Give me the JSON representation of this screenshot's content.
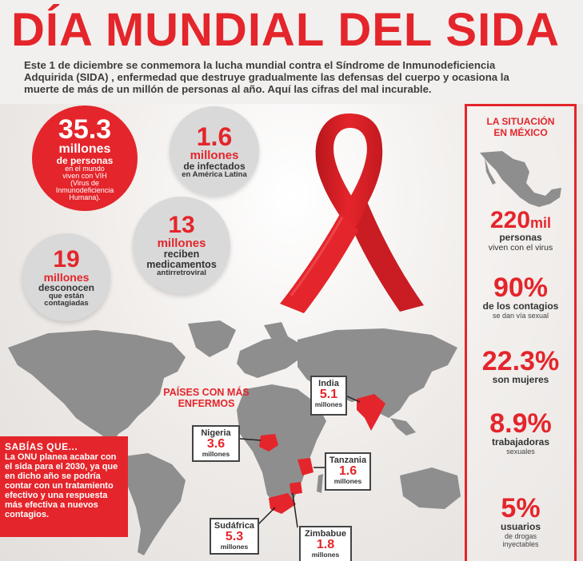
{
  "title": "DÍA MUNDIAL DEL SIDA",
  "intro": "Este 1 de diciembre se conmemora la lucha mundial contra el Síndrome de Inmunodeficiencia Adquirida (SIDA) , enfermedad que destruye gradualmente las defensas del cuerpo y ocasiona la muerte de más de un millón de personas al año. Aquí las cifras del mal incurable.",
  "bubbles": {
    "b1": {
      "num": "35.3",
      "unit": "millones",
      "l1": "de personas",
      "l2": "en el mundo",
      "l3": "viven con VIH",
      "l4": "(Virus de",
      "l5": "Inmunodeficiencia",
      "l6": "Humana)."
    },
    "b2": {
      "num": "1.6",
      "unit": "millones",
      "l1": "de infectados",
      "l2": "en América Latina"
    },
    "b3": {
      "num": "13",
      "unit": "millones",
      "l1": "reciben",
      "l2": "medicamentos",
      "l3": "antirretroviral"
    },
    "b4": {
      "num": "19",
      "unit": "millones",
      "l1": "desconocen",
      "l2": "que están",
      "l3": "contagiadas"
    }
  },
  "ribbon": {
    "icon": "red-ribbon-icon",
    "color": "#d9232a"
  },
  "map_label": "PAÍSES CON MÁS ENFERMOS",
  "countries": {
    "india": {
      "name": "India",
      "value": "5.1",
      "unit": "millones"
    },
    "nigeria": {
      "name": "Nigeria",
      "value": "3.6",
      "unit": "millones"
    },
    "tanzania": {
      "name": "Tanzania",
      "value": "1.6",
      "unit": "millones"
    },
    "sudafrica": {
      "name": "Sudáfrica",
      "value": "5.3",
      "unit": "millones"
    },
    "zimbabue": {
      "name": "Zimbabue",
      "value": "1.8",
      "unit": "millones"
    }
  },
  "sabias": {
    "heading": "SABÍAS QUE...",
    "text": "La ONU planea acabar con el sida para el 2030, ya que en dicho año se podría contar con un tratamiento efectivo y una respuesta más efectiva a nuevos contagios."
  },
  "mexico": {
    "heading_l1": "LA SITUACIÓN",
    "heading_l2": "EN MÉXICO",
    "s1": {
      "big": "220",
      "suffix": "mil",
      "l1": "personas",
      "l2": "viven con el virus"
    },
    "s2": {
      "big": "90%",
      "l1": "de los contagios",
      "l2": "se dan vía sexual"
    },
    "s3": {
      "big": "22.3%",
      "l1": "son mujeres"
    },
    "s4": {
      "big": "8.9%",
      "l1": "trabajadoras",
      "l2": "sexuales"
    },
    "s5": {
      "big": "5%",
      "l1": "usuarios",
      "l2": "de drogas",
      "l3": "inyectables"
    }
  },
  "colors": {
    "accent": "#e4252b",
    "map_grey": "#8e8e8e",
    "highlight_red": "#e4252b"
  }
}
